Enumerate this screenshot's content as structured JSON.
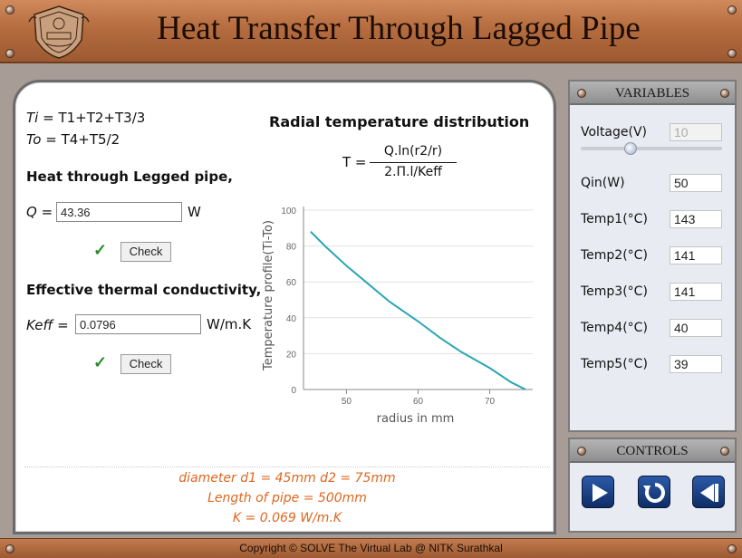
{
  "header": {
    "title": "Heat Transfer Through Lagged Pipe"
  },
  "formulas": {
    "ti_label": "Ti",
    "ti_expr": " = T1+T2+T3/3",
    "to_label": "To",
    "to_expr": " = T4+T5/2",
    "heat_heading": "Heat through Legged pipe,",
    "q_label": "Q =",
    "q_value": "43.36",
    "q_unit": "W",
    "keff_heading": "Effective thermal conductivity,",
    "keff_label": "Keff =",
    "keff_value": "0.0796",
    "keff_unit": "W/m.K",
    "check_label": "Check",
    "tick": "✓"
  },
  "radial": {
    "heading": "Radial temperature distribution",
    "t_label": "T =",
    "numerator": "Q.ln(r2/r)",
    "denominator": "2.Π.l/Keff"
  },
  "info": {
    "line1": "diameter d1 = 45mm d2 = 75mm",
    "line2": "Length of pipe = 500mm",
    "line3": "K = 0.069 W/m.K"
  },
  "variables": {
    "title": "VARIABLES",
    "items": [
      {
        "label": "Voltage(V)",
        "value": "10"
      },
      {
        "label": "Qin(W)",
        "value": "50"
      },
      {
        "label": "Temp1(°C)",
        "value": "143"
      },
      {
        "label": "Temp2(°C)",
        "value": "141"
      },
      {
        "label": "Temp3(°C)",
        "value": "141"
      },
      {
        "label": "Temp4(°C)",
        "value": "40"
      },
      {
        "label": "Temp5(°C)",
        "value": "39"
      }
    ],
    "voltage_slider_fraction": 0.35
  },
  "controls": {
    "title": "CONTROLS",
    "icons": [
      "play-icon",
      "reset-icon",
      "step-back-icon"
    ]
  },
  "footer": {
    "copyright": "Copyright © SOLVE The Virtual Lab @ NITK Surathkal"
  },
  "chart_data": {
    "type": "line",
    "xlabel": "radius in mm",
    "ylabel": "Temperature profile(Ti-To)",
    "xlim": [
      44,
      76
    ],
    "ylim": [
      0,
      100
    ],
    "xticks": [
      50,
      60,
      70
    ],
    "yticks": [
      0,
      20,
      40,
      60,
      80,
      100
    ],
    "grid": "y",
    "color": "#2aa6b4",
    "x": [
      45,
      47,
      50,
      53,
      56,
      60,
      63,
      66,
      70,
      73,
      75
    ],
    "y": [
      88,
      80,
      69,
      59,
      49,
      38,
      29,
      21,
      12,
      4,
      0
    ]
  }
}
